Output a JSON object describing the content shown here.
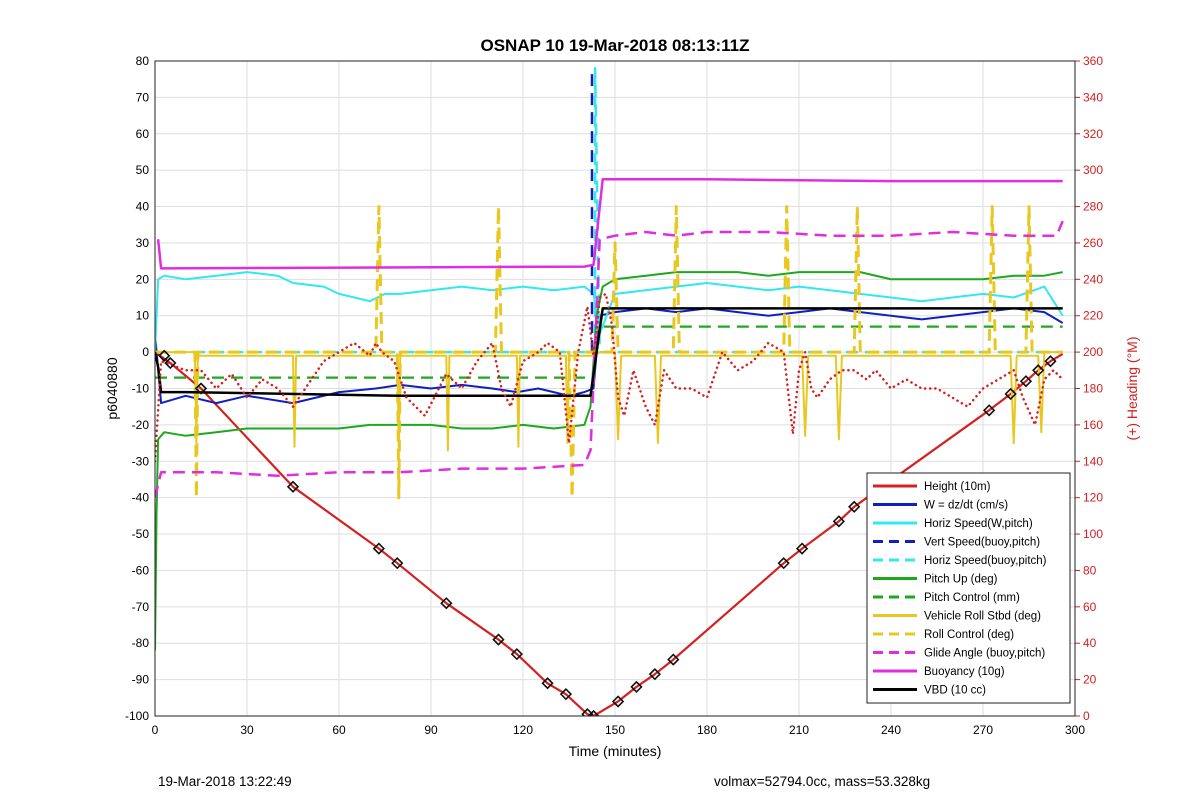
{
  "chart_data": {
    "type": "line",
    "title": "OSNAP 10 19-Mar-2018 08:13:11Z",
    "xlabel": "Time (minutes)",
    "ylabel": "p6040880",
    "ylabel_right": "(+) Heading (°M)",
    "xlim": [
      0,
      300
    ],
    "ylim": [
      -100,
      80
    ],
    "ylim_right": [
      0,
      360
    ],
    "xticks": [
      0,
      30,
      60,
      90,
      120,
      150,
      180,
      210,
      240,
      270,
      300
    ],
    "yticks": [
      -100,
      -90,
      -80,
      -70,
      -60,
      -50,
      -40,
      -30,
      -20,
      -10,
      0,
      10,
      20,
      30,
      40,
      50,
      60,
      70,
      80
    ],
    "yticks_right": [
      0,
      20,
      40,
      60,
      80,
      100,
      120,
      140,
      160,
      180,
      200,
      220,
      240,
      260,
      280,
      300,
      320,
      340,
      360
    ],
    "grid": true,
    "legend_position": "bottom-right",
    "series": [
      {
        "name": "Height (10m)",
        "color": "#d42020",
        "style": "solid",
        "width": 2.2,
        "x": [
          0,
          5,
          15,
          45,
          73,
          79,
          95,
          112,
          118,
          128,
          134,
          141,
          143,
          151,
          157,
          163,
          169,
          205,
          211,
          223,
          228,
          272,
          279,
          284,
          288,
          292,
          296
        ],
        "y": [
          0,
          -3,
          -10,
          -37,
          -54,
          -58,
          -69,
          -79,
          -83,
          -91,
          -94,
          -99.5,
          -100,
          -96,
          -92,
          -88.5,
          -84.5,
          -58,
          -54,
          -46.5,
          -42.5,
          -16,
          -11.5,
          -8,
          -5,
          -2.5,
          -0.5
        ]
      },
      {
        "name": "W = dz/dt (cm/s)",
        "color": "#1020c0",
        "style": "solid",
        "width": 2,
        "x": [
          0,
          2,
          10,
          20,
          30,
          45,
          60,
          72,
          80,
          90,
          100,
          110,
          118,
          125,
          130,
          135,
          140,
          143,
          145,
          150,
          160,
          170,
          180,
          190,
          200,
          210,
          220,
          230,
          240,
          250,
          260,
          270,
          280,
          290,
          296
        ],
        "y": [
          5,
          -14,
          -12,
          -14,
          -12,
          -14,
          -11,
          -10,
          -9,
          -10,
          -9,
          -10,
          -11,
          -10,
          -11,
          -12,
          -11,
          -10,
          10,
          11,
          12,
          11,
          12,
          11,
          10,
          11,
          12,
          11,
          10,
          9,
          10,
          11,
          12,
          11,
          8
        ]
      },
      {
        "name": "Horiz Speed(W,pitch)",
        "color": "#30e8ee",
        "style": "solid",
        "width": 2,
        "x": [
          0,
          1,
          3,
          10,
          20,
          30,
          40,
          45,
          55,
          60,
          65,
          70,
          75,
          80,
          90,
          100,
          110,
          120,
          130,
          140,
          143,
          145,
          150,
          160,
          170,
          180,
          190,
          200,
          210,
          220,
          230,
          240,
          250,
          260,
          270,
          280,
          290,
          296
        ],
        "y": [
          0,
          20,
          21,
          20,
          21,
          22,
          21,
          19,
          18,
          16,
          15,
          14,
          16,
          16,
          17,
          18,
          17,
          18,
          17,
          18,
          16,
          5,
          16,
          17,
          18,
          19,
          18,
          17,
          18,
          17,
          16,
          15,
          14,
          15,
          16,
          15,
          18,
          10
        ]
      },
      {
        "name": "Vert Speed(buoy,pitch)",
        "color": "#1020c0",
        "style": "dash",
        "width": 2.5,
        "x": [
          142.5,
          142.5
        ],
        "y": [
          0,
          78
        ]
      },
      {
        "name": "Horiz Speed(buoy,pitch)",
        "color": "#30e8ee",
        "style": "dash",
        "width": 2.5,
        "x": [
          0,
          142,
          143.5,
          143.5,
          145,
          296
        ],
        "y": [
          0,
          0,
          0,
          78,
          0,
          0
        ]
      },
      {
        "name": "Pitch Up (deg)",
        "color": "#1ea81e",
        "style": "solid",
        "width": 2,
        "x": [
          0,
          0.5,
          1,
          3,
          10,
          20,
          30,
          40,
          50,
          60,
          70,
          80,
          90,
          100,
          110,
          120,
          130,
          140,
          142,
          144,
          146,
          150,
          160,
          170,
          180,
          190,
          200,
          210,
          220,
          230,
          240,
          250,
          260,
          270,
          280,
          290,
          296
        ],
        "y": [
          -82,
          -45,
          -24,
          -22,
          -23,
          -22,
          -21,
          -21,
          -21,
          -21,
          -20,
          -20,
          -20,
          -21,
          -21,
          -20,
          -21,
          -20,
          -15,
          10,
          18,
          20,
          21,
          22,
          22,
          22,
          21,
          22,
          22,
          22,
          20,
          20,
          20,
          20,
          21,
          21,
          22
        ]
      },
      {
        "name": "Pitch Control (mm)",
        "color": "#1ea81e",
        "style": "dash",
        "width": 2.2,
        "x": [
          0,
          143,
          145,
          296
        ],
        "y": [
          -7,
          -7,
          7,
          7
        ]
      },
      {
        "name": "Vehicle Roll Stbd (deg)",
        "color": "#e8c820",
        "style": "solid",
        "width": 2,
        "x": [
          0,
          13,
          13.5,
          14,
          45,
          45.5,
          46,
          79,
          79.5,
          80,
          95,
          95.5,
          96,
          118,
          118.5,
          119,
          134,
          134.5,
          135,
          143,
          145,
          150,
          151,
          152,
          163,
          164,
          165,
          211,
          212,
          213,
          222,
          223,
          224,
          279,
          280,
          281,
          288,
          289,
          290,
          296
        ],
        "y": [
          0,
          0,
          -25,
          -1,
          -1,
          -26,
          -1,
          -1,
          -26,
          -1,
          -1,
          -27,
          -1,
          -1,
          -26,
          -1,
          -1,
          -25,
          -1,
          -1,
          0,
          0,
          -24,
          -1,
          -1,
          -25,
          -1,
          -1,
          -23,
          -1,
          -1,
          -24,
          -1,
          -1,
          -25,
          -1,
          -1,
          -22,
          0,
          0
        ]
      },
      {
        "name": "Roll Control (deg)",
        "color": "#e8c820",
        "style": "dash",
        "width": 3,
        "x": [
          0,
          13,
          13.5,
          14,
          72,
          73,
          74,
          79,
          79.5,
          80,
          111,
          112,
          113,
          135,
          136,
          137,
          145,
          149,
          150,
          151,
          169,
          170,
          171,
          205,
          206,
          207,
          228,
          229,
          230,
          272,
          273,
          274,
          284,
          285,
          286,
          296
        ],
        "y": [
          0,
          0,
          -40,
          0,
          0,
          40,
          0,
          0,
          -40,
          0,
          0,
          40,
          0,
          0,
          -40,
          0,
          0,
          0,
          30,
          0,
          0,
          40,
          0,
          0,
          40,
          0,
          0,
          40,
          0,
          0,
          40,
          0,
          0,
          40,
          0,
          0
        ]
      },
      {
        "name": "Glide Angle (buoy,pitch)",
        "color": "#e02de0",
        "style": "dash",
        "width": 2.5,
        "x": [
          0,
          2,
          20,
          40,
          60,
          80,
          100,
          120,
          140,
          142,
          145,
          150,
          160,
          170,
          180,
          200,
          220,
          240,
          260,
          280,
          294,
          296
        ],
        "y": [
          -40,
          -33,
          -33,
          -34,
          -33,
          -33,
          -32,
          -32,
          -31,
          -27,
          31,
          32,
          33,
          32,
          33,
          33,
          32,
          32,
          33,
          32,
          32,
          36
        ]
      },
      {
        "name": "Buoyancy (10g)",
        "color": "#e02de0",
        "style": "solid",
        "width": 2.5,
        "x": [
          1,
          2,
          140,
          143,
          146,
          180,
          240,
          296
        ],
        "y": [
          31,
          23,
          23.5,
          24,
          47.5,
          47.5,
          47,
          47
        ]
      },
      {
        "name": "VBD (10 cc)",
        "color": "#000000",
        "style": "solid",
        "width": 2.5,
        "x": [
          0,
          1,
          2,
          10,
          80,
          142,
          146,
          296
        ],
        "y": [
          0,
          -4,
          -11,
          -11,
          -12,
          -12,
          12,
          12
        ]
      },
      {
        "name": "Heading",
        "axis": "right",
        "color": "#d42020",
        "style": "dot",
        "width": 2.5,
        "x": [
          0,
          2,
          10,
          15,
          20,
          25,
          30,
          35,
          40,
          45,
          55,
          60,
          65,
          70,
          72,
          74,
          78,
          82,
          88,
          95,
          100,
          105,
          110,
          113,
          116,
          120,
          125,
          128,
          132,
          135,
          138,
          141,
          143,
          144,
          145,
          147,
          149,
          151,
          153,
          156,
          160,
          163,
          166,
          170,
          175,
          180,
          185,
          190,
          195,
          200,
          205,
          208,
          210,
          212,
          214,
          216,
          220,
          224,
          228,
          232,
          235,
          240,
          245,
          250,
          255,
          260,
          265,
          270,
          275,
          280,
          283,
          287,
          290,
          293,
          296
        ],
        "y": [
          140,
          195,
          190,
          190,
          180,
          188,
          175,
          185,
          180,
          170,
          195,
          200,
          205,
          198,
          205,
          200,
          195,
          175,
          165,
          188,
          180,
          195,
          205,
          180,
          170,
          195,
          200,
          205,
          200,
          150,
          200,
          225,
          198,
          210,
          230,
          232,
          215,
          175,
          165,
          190,
          170,
          160,
          190,
          180,
          180,
          175,
          200,
          190,
          195,
          205,
          200,
          155,
          190,
          200,
          180,
          175,
          185,
          190,
          190,
          185,
          190,
          180,
          185,
          180,
          180,
          175,
          170,
          180,
          185,
          190,
          175,
          160,
          185,
          190,
          185
        ]
      }
    ],
    "markers": {
      "symbol": "diamond",
      "x": [
        3,
        5,
        15,
        45,
        73,
        79,
        95,
        112,
        118,
        128,
        134,
        141,
        143,
        151,
        157,
        163,
        169,
        205,
        211,
        223,
        228,
        272,
        279,
        284,
        288,
        292
      ],
      "y": [
        -1,
        -3,
        -10,
        -37,
        -54,
        -58,
        -69,
        -79,
        -83,
        -91,
        -94,
        -99.5,
        -100,
        -96,
        -92,
        -88.5,
        -84.5,
        -58,
        -54,
        -46.5,
        -42.5,
        -16,
        -11.5,
        -8,
        -5,
        -2.5
      ]
    }
  },
  "footer": {
    "timestamp": "19-Mar-2018 13:22:49",
    "info": "volmax=52794.0cc, mass=53.328kg"
  }
}
